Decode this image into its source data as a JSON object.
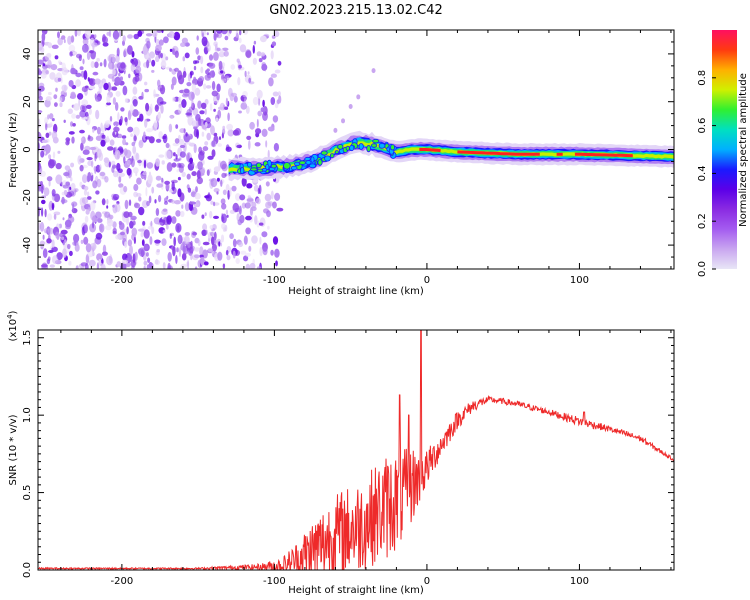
{
  "title": "GN02.2023.215.13.02.C42",
  "colors": {
    "snr_line": "#ee2a2a",
    "axis": "#000000",
    "colormap": [
      "#e8e6f6",
      "#c9a6f0",
      "#a45cf0",
      "#8a2be2",
      "#5b00e8",
      "#1a1aff",
      "#00b0ff",
      "#00e0c0",
      "#30f030",
      "#d0f000",
      "#ffb000",
      "#ff3a10",
      "#ff1060"
    ]
  },
  "chart_data": [
    {
      "type": "heatmap",
      "name": "spectrogram",
      "xlabel": "Height of straight line (km)",
      "ylabel": "Frequency (Hz)",
      "xlim": [
        -255,
        162
      ],
      "ylim": [
        -50,
        50
      ],
      "xticks": [
        -200,
        -100,
        0,
        100
      ],
      "yticks": [
        -40,
        -20,
        0,
        20,
        40
      ],
      "colorbar": {
        "label": "Normalized spectral amplitude",
        "range": [
          0.0,
          1.0
        ],
        "ticks": [
          "0.0",
          "0.2",
          "0.4",
          "0.6",
          "0.8"
        ]
      },
      "description_band": {
        "noise_region_km": [
          -255,
          -95
        ],
        "ridge": [
          {
            "x": -130,
            "y": -8
          },
          {
            "x": -110,
            "y": -8
          },
          {
            "x": -90,
            "y": -7
          },
          {
            "x": -75,
            "y": -5
          },
          {
            "x": -65,
            "y": -2
          },
          {
            "x": -55,
            "y": 1
          },
          {
            "x": -45,
            "y": 3
          },
          {
            "x": -35,
            "y": 2
          },
          {
            "x": -25,
            "y": 0
          },
          {
            "x": -20,
            "y": -1
          },
          {
            "x": -10,
            "y": 0
          },
          {
            "x": 0,
            "y": 0
          },
          {
            "x": 20,
            "y": -1
          },
          {
            "x": 60,
            "y": -2
          },
          {
            "x": 100,
            "y": -2
          },
          {
            "x": 162,
            "y": -3
          }
        ]
      }
    },
    {
      "type": "line",
      "name": "snr",
      "xlabel": "Height of straight line (km)",
      "ylabel": "SNR (10 * v/v)",
      "yexponent_label": "(x10",
      "yexponent_power": "4",
      "yexponent_close": ")",
      "xlim": [
        -255,
        162
      ],
      "ylim": [
        0,
        1.55
      ],
      "xticks": [
        -200,
        -100,
        0,
        100
      ],
      "yticks": [
        "0.0",
        "0.5",
        "1.0",
        "1.5"
      ],
      "envelope": {
        "x": [
          -255,
          -150,
          -110,
          -95,
          -85,
          -75,
          -65,
          -55,
          -45,
          -35,
          -25,
          -15,
          -10,
          -5,
          0,
          10,
          20,
          30,
          40,
          50,
          60,
          80,
          100,
          120,
          140,
          162
        ],
        "base": [
          0.01,
          0.01,
          0.02,
          0.03,
          0.07,
          0.12,
          0.2,
          0.25,
          0.28,
          0.35,
          0.42,
          0.48,
          0.55,
          0.6,
          0.66,
          0.82,
          0.97,
          1.06,
          1.1,
          1.09,
          1.07,
          1.02,
          0.96,
          0.91,
          0.85,
          0.71
        ],
        "amp": [
          0.005,
          0.005,
          0.02,
          0.05,
          0.12,
          0.22,
          0.25,
          0.28,
          0.3,
          0.32,
          0.35,
          0.3,
          0.25,
          0.2,
          0.12,
          0.08,
          0.06,
          0.04,
          0.02,
          0.02,
          0.02,
          0.02,
          0.03,
          0.02,
          0.02,
          0.01
        ]
      },
      "spikes": [
        {
          "x": -4,
          "y": 1.55
        },
        {
          "x": -18,
          "y": 1.13
        },
        {
          "x": -12,
          "y": 1.0
        },
        {
          "x": 103,
          "y": 1.02
        }
      ]
    }
  ]
}
